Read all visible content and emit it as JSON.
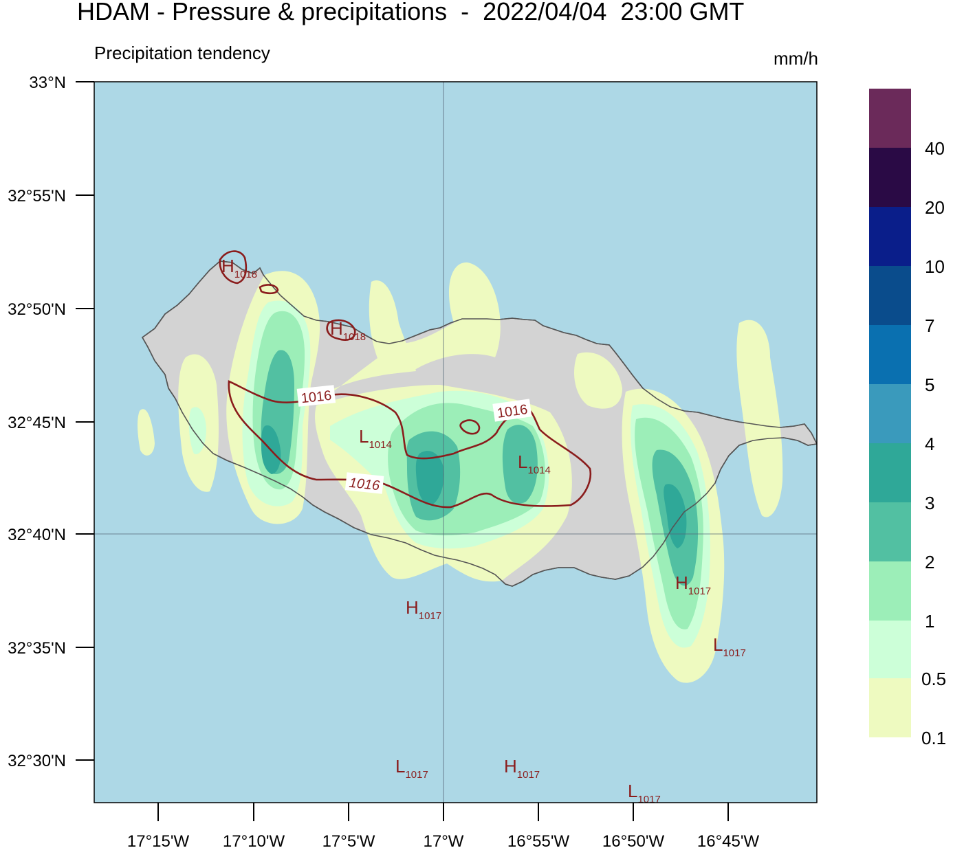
{
  "header": {
    "title": "HDAM - Pressure & precipitations  -  2022/04/04  23:00 GMT",
    "subtitle": "Precipitation tendency",
    "units": "mm/h"
  },
  "colors": {
    "sea": "#add8e6",
    "land": "#d3d3d3",
    "coast": "#555555",
    "isobar": "#8a1c1c"
  },
  "axes": {
    "lat_ticks": [
      "33°N",
      "32°55'N",
      "32°50'N",
      "32°45'N",
      "32°40'N",
      "32°35'N",
      "32°30'N"
    ],
    "lon_ticks": [
      "17°15'W",
      "17°10'W",
      "17°5'W",
      "17°W",
      "16°55'W",
      "16°50'W",
      "16°45'W"
    ]
  },
  "colorbar": {
    "labels": [
      "40",
      "20",
      "10",
      "7",
      "5",
      "4",
      "3",
      "2",
      "1",
      "0.5",
      "0.1"
    ],
    "colors": [
      "#6b2a5a",
      "#2a0a45",
      "#0a1e8a",
      "#0a4c8c",
      "#0a70b0",
      "#3a9abc",
      "#2fa898",
      "#52c0a2",
      "#9ceeb8",
      "#ccffd8",
      "#eefac0"
    ]
  },
  "isobar_labels": [
    "1016",
    "1016",
    "1016"
  ],
  "pressure_centers": [
    {
      "type": "H",
      "value": "1018"
    },
    {
      "type": "H",
      "value": "1018"
    },
    {
      "type": "L",
      "value": "1014"
    },
    {
      "type": "L",
      "value": "1014"
    },
    {
      "type": "H",
      "value": "1017"
    },
    {
      "type": "L",
      "value": "1017"
    },
    {
      "type": "H",
      "value": "1017"
    },
    {
      "type": "L",
      "value": "1017"
    },
    {
      "type": "H",
      "value": "1017"
    },
    {
      "type": "L",
      "value": "1017"
    }
  ]
}
